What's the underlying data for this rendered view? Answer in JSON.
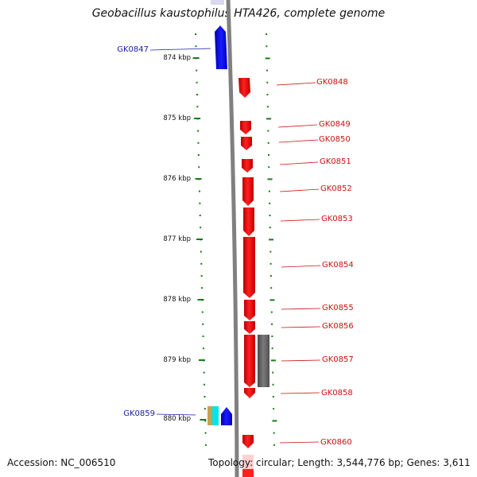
{
  "title": "Geobacillus kaustophilus HTA426, complete genome",
  "footer": {
    "accession": "Accession: NC_006510",
    "summary": "Topology: circular; Length: 3,544,776 bp; Genes: 3,611"
  },
  "ruler": [
    {
      "label": "874 kbp",
      "kbp": 874
    },
    {
      "label": "875 kbp",
      "kbp": 875
    },
    {
      "label": "876 kbp",
      "kbp": 876
    },
    {
      "label": "877 kbp",
      "kbp": 877
    },
    {
      "label": "878 kbp",
      "kbp": 878
    },
    {
      "label": "879 kbp",
      "kbp": 879
    },
    {
      "label": "880 kbp",
      "kbp": 880
    }
  ],
  "genes_left": [
    {
      "name": "GK0847",
      "strand": "reverse",
      "color": "#0000ff"
    },
    {
      "name": "GK0859",
      "strand": "reverse",
      "color": "#0000ff"
    }
  ],
  "genes_right": [
    {
      "name": "GK0848",
      "strand": "forward",
      "color": "#ff0000"
    },
    {
      "name": "GK0849",
      "strand": "forward",
      "color": "#ff0000"
    },
    {
      "name": "GK0850",
      "strand": "forward",
      "color": "#ff0000"
    },
    {
      "name": "GK0851",
      "strand": "forward",
      "color": "#ff0000"
    },
    {
      "name": "GK0852",
      "strand": "forward",
      "color": "#ff0000"
    },
    {
      "name": "GK0853",
      "strand": "forward",
      "color": "#ff0000"
    },
    {
      "name": "GK0854",
      "strand": "forward",
      "color": "#ff0000"
    },
    {
      "name": "GK0855",
      "strand": "forward",
      "color": "#ff0000"
    },
    {
      "name": "GK0856",
      "strand": "forward",
      "color": "#ff0000"
    },
    {
      "name": "GK0857",
      "strand": "forward",
      "color": "#ff0000"
    },
    {
      "name": "GK0858",
      "strand": "forward",
      "color": "#ff0000"
    },
    {
      "name": "GK0860",
      "strand": "forward",
      "color": "#ff0000"
    }
  ],
  "colors": {
    "forward_gene": "#ff0000",
    "reverse_gene": "#0000ff",
    "ruler_ticks": "#1a7a1a",
    "backbone": "#808080",
    "feature_gray": "#666666",
    "rna_cyan": "#00e5e5",
    "rna_tan": "#c8a050"
  }
}
